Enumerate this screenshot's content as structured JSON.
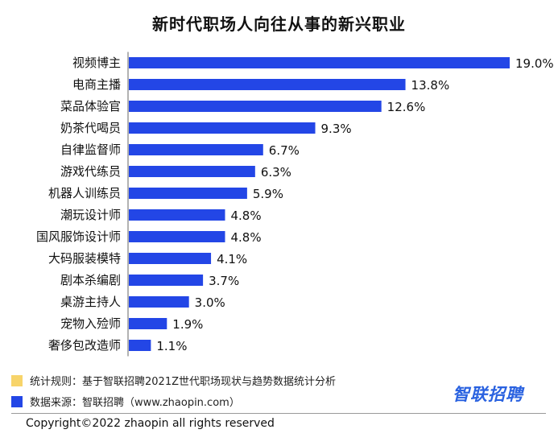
{
  "chart_data": {
    "type": "bar",
    "orientation": "horizontal",
    "title": "新时代职场人向往从事的新兴职业",
    "categories": [
      "视频博主",
      "电商主播",
      "菜品体验官",
      "奶茶代喝员",
      "自律监督师",
      "游戏代练员",
      "机器人训练员",
      "潮玩设计师",
      "国风服饰设计师",
      "大码服装模特",
      "剧本杀编剧",
      "桌游主持人",
      "宠物入殓师",
      "奢侈包改造师"
    ],
    "values": [
      19.0,
      13.8,
      12.6,
      9.3,
      6.7,
      6.3,
      5.9,
      4.8,
      4.8,
      4.1,
      3.7,
      3.0,
      1.9,
      1.1
    ],
    "value_labels": [
      "19.0%",
      "13.8%",
      "12.6%",
      "9.3%",
      "6.7%",
      "6.3%",
      "5.9%",
      "4.8%",
      "4.8%",
      "4.1%",
      "3.7%",
      "3.0%",
      "1.9%",
      "1.1%"
    ],
    "xlim": [
      0,
      19.0
    ],
    "grid": false,
    "bar_color": "#2346e6"
  },
  "legend": {
    "items": [
      {
        "label": "统计规则：基于智联招聘2021Z世代职场现状与趋势数据统计分析",
        "color": "#f7d46a"
      },
      {
        "label": "数据来源：智联招聘（www.zhaopin.com）",
        "color": "#2346e6"
      }
    ]
  },
  "brand": {
    "logo_text": "智联招聘",
    "color": "#2a62e0"
  },
  "footer": {
    "copyright": "Copyright©2022 zhaopin all rights reserved"
  }
}
